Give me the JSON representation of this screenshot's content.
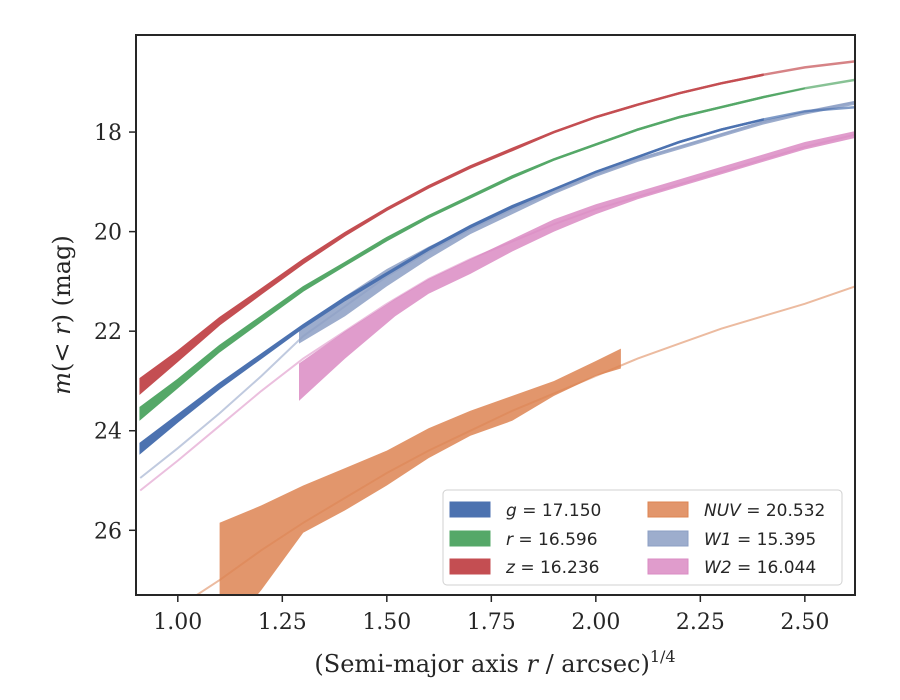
{
  "chart_data": {
    "type": "area",
    "xlabel": "(Semi-major axis r / arcsec)^1/4",
    "xlabel_parts": {
      "main": "(Semi-major axis ",
      "var": "r",
      "rest": " / arcsec)",
      "sup": "1/4"
    },
    "ylabel": "m(< r) (mag)",
    "ylabel_parts": {
      "var": "m",
      "rest": "(< ",
      "var2": "r",
      "tail": ") (mag)"
    },
    "xlim": [
      0.9,
      2.62
    ],
    "ylim": [
      27.3,
      16.05
    ],
    "y_inverted": true,
    "grid": false,
    "x_ticks": [
      "1.00",
      "1.25",
      "1.50",
      "1.75",
      "2.00",
      "2.25",
      "2.50"
    ],
    "x_tick_values": [
      1.0,
      1.25,
      1.5,
      1.75,
      2.0,
      2.25,
      2.5
    ],
    "y_ticks": [
      "18",
      "20",
      "22",
      "24",
      "26"
    ],
    "y_tick_values": [
      18,
      20,
      22,
      24,
      26
    ],
    "legend_position": "lower-right",
    "series": [
      {
        "name": "g = 17.150",
        "label_var": "g",
        "label_value": "17.150",
        "color": "#4c72b0",
        "x": [
          0.91,
          1.0,
          1.1,
          1.2,
          1.3,
          1.4,
          1.5,
          1.6,
          1.7,
          1.8,
          1.9,
          2.0,
          2.1,
          2.2,
          2.3,
          2.4,
          2.5,
          2.62
        ],
        "y": [
          24.35,
          23.75,
          23.1,
          22.5,
          21.9,
          21.35,
          20.85,
          20.35,
          19.9,
          19.5,
          19.15,
          18.8,
          18.5,
          18.2,
          17.95,
          17.75,
          17.58,
          17.5
        ],
        "y_lo": [
          24.45,
          23.82,
          23.15,
          22.54,
          21.93,
          21.38,
          20.87,
          20.37,
          19.92,
          19.52,
          19.16,
          18.81,
          18.51,
          18.21,
          17.96,
          17.76,
          17.58,
          17.5
        ],
        "y_hi": [
          24.25,
          23.68,
          23.05,
          22.46,
          21.87,
          21.32,
          20.83,
          20.33,
          19.88,
          19.48,
          19.14,
          18.79,
          18.49,
          18.19,
          17.94,
          17.74,
          17.58,
          17.5
        ],
        "band_end_x": 2.45
      },
      {
        "name": "r = 16.596",
        "label_var": "r",
        "label_value": "16.596",
        "color": "#55a868",
        "x": [
          0.91,
          1.0,
          1.1,
          1.2,
          1.3,
          1.4,
          1.5,
          1.6,
          1.7,
          1.8,
          1.9,
          2.0,
          2.1,
          2.2,
          2.3,
          2.4,
          2.5,
          2.62
        ],
        "y": [
          23.65,
          23.05,
          22.35,
          21.75,
          21.15,
          20.65,
          20.15,
          19.7,
          19.3,
          18.9,
          18.55,
          18.25,
          17.95,
          17.7,
          17.5,
          17.3,
          17.12,
          16.95
        ],
        "y_lo": [
          23.77,
          23.13,
          22.41,
          21.8,
          21.19,
          20.68,
          20.18,
          19.72,
          19.32,
          18.92,
          18.56,
          18.26,
          17.96,
          17.71,
          17.51,
          17.31,
          17.12,
          16.95
        ],
        "y_hi": [
          23.53,
          22.97,
          22.29,
          21.7,
          21.11,
          20.62,
          20.12,
          19.68,
          19.28,
          18.88,
          18.54,
          18.24,
          17.94,
          17.69,
          17.49,
          17.29,
          17.12,
          16.95
        ],
        "band_end_x": 2.55
      },
      {
        "name": "z = 16.236",
        "label_var": "z",
        "label_value": "16.236",
        "color": "#c44e52",
        "x": [
          0.91,
          1.0,
          1.1,
          1.2,
          1.3,
          1.4,
          1.5,
          1.6,
          1.7,
          1.8,
          1.9,
          2.0,
          2.1,
          2.2,
          2.3,
          2.4,
          2.5,
          2.62
        ],
        "y": [
          23.1,
          22.5,
          21.8,
          21.2,
          20.6,
          20.05,
          19.55,
          19.1,
          18.7,
          18.35,
          18.0,
          17.7,
          17.45,
          17.22,
          17.02,
          16.85,
          16.7,
          16.58
        ],
        "y_lo": [
          23.25,
          22.6,
          21.87,
          21.25,
          20.64,
          20.08,
          19.57,
          19.12,
          18.72,
          18.37,
          18.01,
          17.71,
          17.46,
          17.23,
          17.03,
          16.86,
          16.7,
          16.58
        ],
        "y_hi": [
          22.95,
          22.4,
          21.73,
          21.15,
          20.56,
          20.02,
          19.53,
          19.08,
          18.68,
          18.33,
          17.99,
          17.69,
          17.44,
          17.21,
          17.01,
          16.84,
          16.7,
          16.58
        ],
        "band_end_x": 2.45
      },
      {
        "name": "NUV = 20.532",
        "label_var": "NUV",
        "label_value": "20.532",
        "color": "#dd8452",
        "x": [
          0.91,
          1.0,
          1.1,
          1.2,
          1.3,
          1.4,
          1.5,
          1.6,
          1.7,
          1.8,
          1.9,
          2.0,
          2.1,
          2.2,
          2.3,
          2.4,
          2.5,
          2.62
        ],
        "y": [
          28.2,
          27.55,
          27.0,
          26.4,
          25.85,
          25.35,
          24.85,
          24.4,
          24.0,
          23.6,
          23.25,
          22.9,
          22.55,
          22.25,
          21.95,
          21.7,
          21.45,
          21.1
        ],
        "band_x": [
          1.1,
          1.2,
          1.3,
          1.4,
          1.5,
          1.6,
          1.7,
          1.8,
          1.9,
          2.0,
          2.06
        ],
        "band_lo": [
          28.2,
          27.2,
          26.05,
          25.6,
          25.1,
          24.55,
          24.1,
          23.8,
          23.3,
          22.9,
          22.75
        ],
        "band_hi": [
          25.85,
          25.5,
          25.1,
          24.75,
          24.4,
          23.95,
          23.6,
          23.3,
          23.0,
          22.6,
          22.35
        ]
      },
      {
        "name": "W1 = 15.395",
        "label_var": "W1",
        "label_value": "15.395",
        "color": "#8c9fc4",
        "x": [
          0.91,
          1.0,
          1.1,
          1.2,
          1.3,
          1.4,
          1.5,
          1.6,
          1.7,
          1.8,
          1.9,
          2.0,
          2.1,
          2.2,
          2.3,
          2.4,
          2.5,
          2.62
        ],
        "y": [
          24.95,
          24.35,
          23.65,
          22.9,
          22.1,
          21.5,
          20.9,
          20.4,
          19.95,
          19.55,
          19.2,
          18.85,
          18.55,
          18.3,
          18.05,
          17.8,
          17.6,
          17.4
        ],
        "band_x": [
          1.29,
          1.4,
          1.5,
          1.6,
          1.7,
          1.8,
          1.9,
          2.0,
          2.1,
          2.2,
          2.3,
          2.4,
          2.5,
          2.62
        ],
        "band_lo": [
          22.25,
          21.7,
          21.1,
          20.55,
          20.05,
          19.65,
          19.25,
          18.9,
          18.6,
          18.35,
          18.1,
          17.85,
          17.65,
          17.45
        ],
        "band_hi": [
          21.95,
          21.3,
          20.75,
          20.3,
          19.9,
          19.5,
          19.15,
          18.82,
          18.52,
          18.27,
          18.02,
          17.77,
          17.57,
          17.37
        ]
      },
      {
        "name": "W2 = 16.044",
        "label_var": "W2",
        "label_value": "16.044",
        "color": "#da8bc3",
        "x": [
          0.91,
          1.0,
          1.1,
          1.2,
          1.3,
          1.4,
          1.5,
          1.6,
          1.7,
          1.8,
          1.9,
          2.0,
          2.1,
          2.2,
          2.3,
          2.4,
          2.5,
          2.62
        ],
        "y": [
          25.2,
          24.6,
          23.9,
          23.2,
          22.55,
          22.0,
          21.45,
          20.95,
          20.55,
          20.2,
          19.85,
          19.55,
          19.3,
          19.05,
          18.8,
          18.55,
          18.3,
          18.05
        ],
        "band_x": [
          1.29,
          1.4,
          1.52,
          1.6,
          1.7,
          1.8,
          1.9,
          2.0,
          2.1,
          2.2,
          2.3,
          2.4,
          2.5,
          2.62
        ],
        "band_lo": [
          23.4,
          22.55,
          21.7,
          21.25,
          20.85,
          20.4,
          20.0,
          19.65,
          19.35,
          19.1,
          18.85,
          18.6,
          18.35,
          18.12
        ],
        "band_hi": [
          22.65,
          22.0,
          21.35,
          20.95,
          20.55,
          20.15,
          19.75,
          19.45,
          19.2,
          18.95,
          18.7,
          18.45,
          18.2,
          17.98
        ]
      }
    ]
  }
}
